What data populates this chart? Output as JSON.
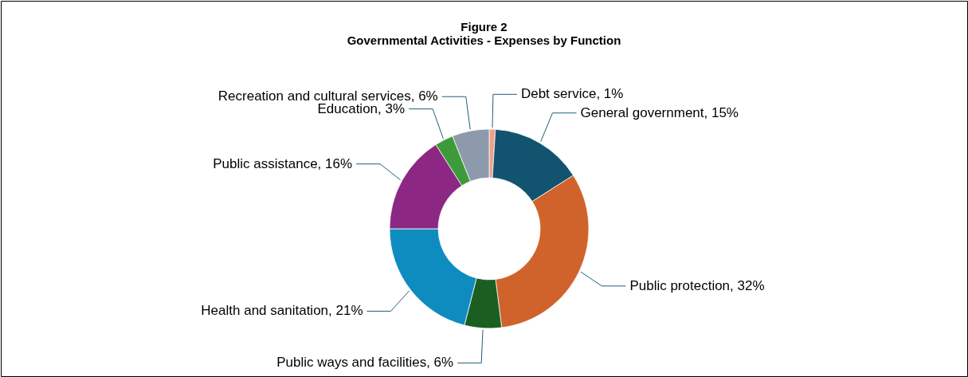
{
  "chart_data": {
    "type": "donut",
    "title": "Figure 2",
    "subtitle": "Governmental Activities - Expenses by Function",
    "categories": [
      "Debt service",
      "General government",
      "Public protection",
      "Public ways and facilities",
      "Health and sanitation",
      "Public assistance",
      "Education",
      "Recreation and cultural services"
    ],
    "values": [
      1,
      15,
      32,
      6,
      21,
      16,
      3,
      6
    ],
    "value_labels": [
      "1%",
      "15%",
      "32%",
      "6%",
      "21%",
      "16%",
      "3%",
      "6%"
    ],
    "colors": [
      "#f0a08a",
      "#12546f",
      "#d0632b",
      "#1a5e22",
      "#0e8cc0",
      "#8c2783",
      "#3d9a3a",
      "#8d9aab"
    ],
    "legend": false
  }
}
